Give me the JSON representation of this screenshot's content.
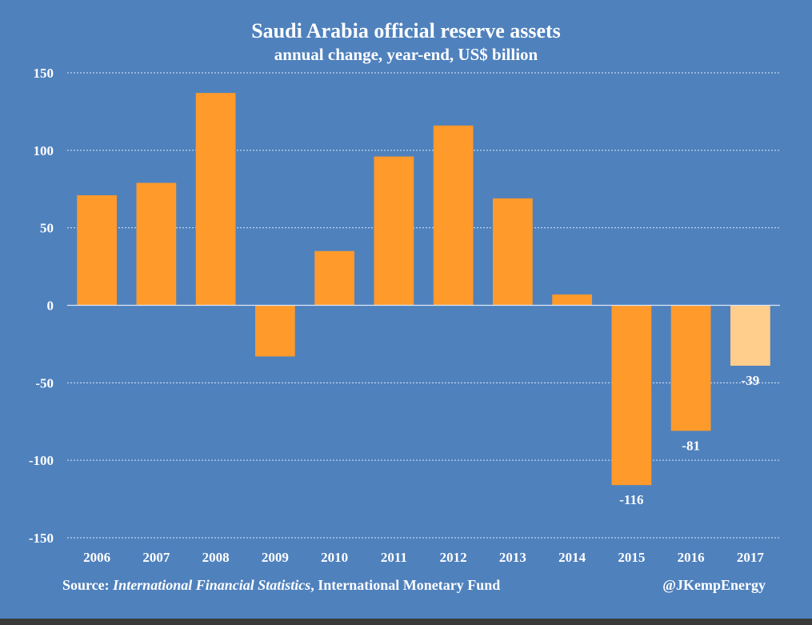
{
  "chart_data": {
    "type": "bar",
    "title": "Saudi Arabia official reserve assets",
    "subtitle": "annual change, year-end, US$ billion",
    "categories": [
      "2006",
      "2007",
      "2008",
      "2009",
      "2010",
      "2011",
      "2012",
      "2013",
      "2014",
      "2015",
      "2016",
      "2017"
    ],
    "values": [
      71,
      79,
      137,
      -33,
      35,
      96,
      116,
      69,
      7,
      -116,
      -81,
      -39
    ],
    "data_labels": {
      "2015": "-116",
      "2016": "-81",
      "2017": "-39"
    },
    "highlight": [
      "2017"
    ],
    "ylim": [
      -150,
      150
    ],
    "yticks": [
      150,
      100,
      50,
      0,
      -50,
      -100,
      -150
    ],
    "grid": true,
    "colors": {
      "bar": "#ff9a2b",
      "highlight_bar": "#ffcd8c",
      "background": "#4f81bd",
      "text": "#ffffff"
    }
  },
  "footer": {
    "source_prefix": "Source: ",
    "source_title": "International Financial Statistics",
    "source_suffix": ", International Monetary Fund",
    "credit": "@JKempEnergy"
  }
}
